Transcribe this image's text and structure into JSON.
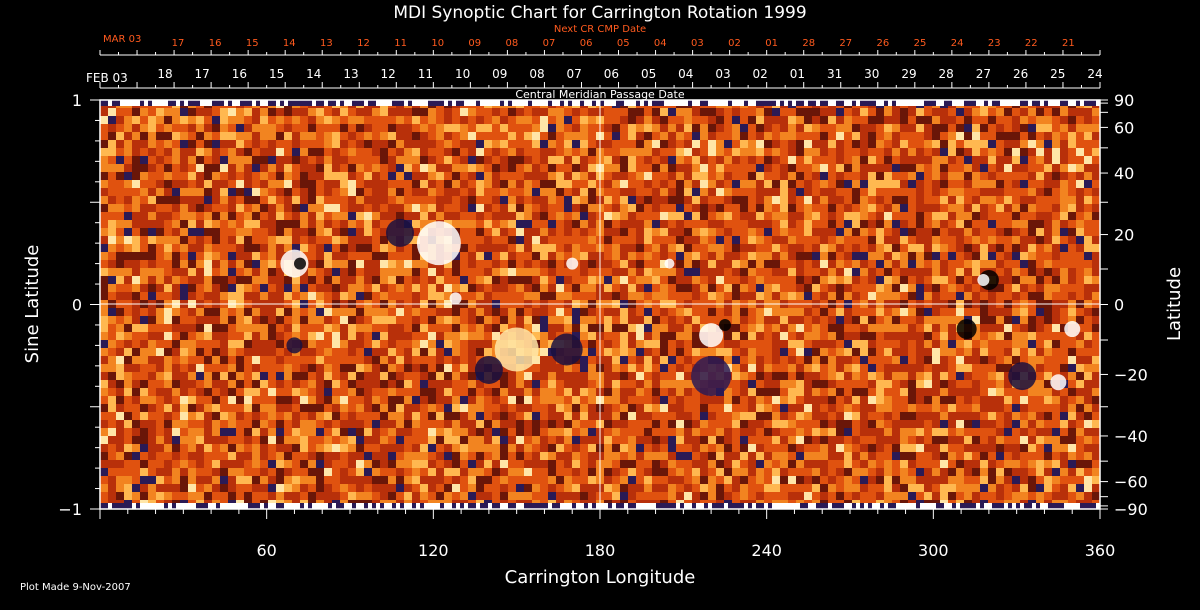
{
  "chart_data": {
    "type": "heatmap",
    "title": "MDI Synoptic Chart for Carrington Rotation 1999",
    "xlabel": "Carrington Longitude",
    "ylabel_left": "Sine Latitude",
    "ylabel_right": "Latitude",
    "xlim": [
      0,
      360
    ],
    "ylim": [
      -1,
      1
    ],
    "x_ticks": [
      "60",
      "120",
      "180",
      "240",
      "300",
      "360"
    ],
    "y_left_ticks": [
      "1",
      "0",
      "−1"
    ],
    "y_right_ticks": [
      "90",
      "60",
      "40",
      "20",
      "0",
      "−20",
      "−40",
      "−60",
      "−90"
    ],
    "y_right_tick_values": [
      90,
      60,
      40,
      20,
      0,
      -20,
      -40,
      -60,
      -90
    ],
    "cmp_label": "Central Meridian Passage Date",
    "cmp_start": "FEB 03",
    "cmp_dates": [
      "18",
      "17",
      "16",
      "15",
      "14",
      "13",
      "12",
      "11",
      "10",
      "09",
      "08",
      "07",
      "06",
      "05",
      "04",
      "03",
      "02",
      "01",
      "31",
      "30",
      "29",
      "28",
      "27",
      "26",
      "25",
      "24"
    ],
    "next_cr_label": "Next CR CMP Date",
    "next_cr_start": "MAR 03",
    "next_cr_dates": [
      "17",
      "16",
      "15",
      "14",
      "13",
      "12",
      "11",
      "10",
      "09",
      "08",
      "07",
      "06",
      "05",
      "04",
      "03",
      "02",
      "01",
      "28",
      "27",
      "26",
      "25",
      "24",
      "23",
      "22",
      "21"
    ],
    "grid": true,
    "colors": {
      "background": "#000000",
      "text": "#ffffff",
      "next_cr_text": "#ff5a1e",
      "map_palette": [
        "#000000",
        "#2a1a55",
        "#6a1608",
        "#b8300a",
        "#e0520f",
        "#f28420",
        "#ffb850",
        "#ffe6a8",
        "#ffffff"
      ]
    }
  },
  "footer": {
    "plot_made": "Plot Made  9-Nov-2007"
  }
}
